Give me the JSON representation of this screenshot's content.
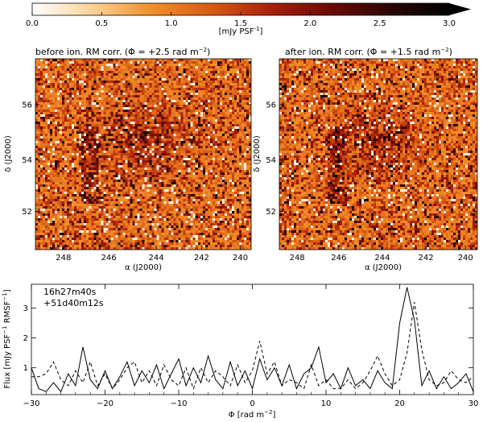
{
  "colorbar": {
    "ticks": [
      "0.0",
      "0.5",
      "1.0",
      "1.5",
      "2.0",
      "2.5",
      "3.0"
    ],
    "min": 0,
    "max": 3,
    "unit_label": "[mJy PSF",
    "unit_sup": "-1",
    "unit_close": "]",
    "colors": [
      "#ffffff",
      "#f9d49a",
      "#f28f2a",
      "#d95b14",
      "#a8200b",
      "#6b0a06",
      "#2c0603",
      "#000000"
    ]
  },
  "panels": [
    {
      "title": "before ion. RM corr. (Φ = +2.5 rad m",
      "title_sup": "−2",
      "title_close": ")"
    },
    {
      "title": "after ion. RM corr. (Φ = +1.5 rad m",
      "title_sup": "−2",
      "title_close": ")"
    }
  ],
  "maps": {
    "x_ticks": [
      "248",
      "246",
      "244",
      "242",
      "240"
    ],
    "y_ticks": [
      "52",
      "54",
      "56"
    ],
    "xlabel": "α (J2000)",
    "ylabel": "δ (J2000)"
  },
  "chart_data": {
    "type": "line",
    "annotation_line1": "16h27m40s",
    "annotation_line2": "+51d40m12s",
    "xlabel": "Φ [rad m",
    "xlabel_sup": "−2",
    "xlabel_close": "]",
    "ylabel": "Flux [mJy PSF",
    "ylabel_sup": "−1",
    "ylabel_mid": " RMSF",
    "ylabel_sup2": "−1",
    "ylabel_close": "]",
    "xlim": [
      -30,
      30
    ],
    "ylim": [
      0.1,
      3.8
    ],
    "x_ticks": [
      -30,
      -20,
      -10,
      0,
      10,
      20,
      30
    ],
    "x_tick_labels": [
      "−30",
      "−20",
      "−10",
      "0",
      "10",
      "20",
      "30"
    ],
    "y_ticks": [
      1,
      2,
      3
    ],
    "y_tick_labels": [
      "1",
      "2",
      "3"
    ],
    "series": [
      {
        "name": "before ion. RM corr.",
        "style": "solid",
        "x": [
          -30,
          -29,
          -28,
          -27,
          -26,
          -25,
          -24,
          -23,
          -22,
          -21,
          -20,
          -19,
          -18,
          -17,
          -16,
          -15,
          -14,
          -13,
          -12,
          -11,
          -10,
          -9,
          -8,
          -7,
          -6,
          -5,
          -4,
          -3,
          -2,
          -1,
          0,
          1,
          2,
          3,
          4,
          5,
          6,
          7,
          8,
          9,
          10,
          11,
          12,
          13,
          14,
          15,
          16,
          17,
          18,
          19,
          20,
          21,
          22,
          23,
          24,
          25,
          26,
          27,
          28,
          29,
          30
        ],
        "values": [
          1.0,
          0.3,
          0.2,
          0.5,
          0.2,
          0.8,
          0.4,
          1.7,
          0.6,
          0.3,
          0.9,
          0.3,
          0.7,
          1.2,
          0.4,
          0.9,
          0.5,
          1.1,
          0.3,
          0.8,
          1.3,
          0.4,
          1.0,
          0.5,
          1.4,
          0.6,
          0.3,
          1.2,
          0.4,
          0.9,
          0.3,
          1.3,
          0.6,
          1.0,
          0.4,
          1.1,
          0.3,
          0.8,
          1.0,
          1.7,
          0.5,
          0.8,
          0.3,
          1.0,
          0.4,
          0.6,
          0.3,
          0.9,
          0.5,
          0.3,
          2.5,
          3.7,
          2.6,
          0.4,
          0.9,
          0.3,
          0.7,
          0.3,
          0.5,
          0.8,
          0.2
        ]
      },
      {
        "name": "after ion. RM corr.",
        "style": "dashed",
        "x": [
          -30,
          -29,
          -28,
          -27,
          -26,
          -25,
          -24,
          -23,
          -22,
          -21,
          -20,
          -19,
          -18,
          -17,
          -16,
          -15,
          -14,
          -13,
          -12,
          -11,
          -10,
          -9,
          -8,
          -7,
          -6,
          -5,
          -4,
          -3,
          -2,
          -1,
          0,
          1,
          2,
          3,
          4,
          5,
          6,
          7,
          8,
          9,
          10,
          11,
          12,
          13,
          14,
          15,
          16,
          17,
          18,
          19,
          20,
          21,
          22,
          23,
          24,
          25,
          26,
          27,
          28,
          29,
          30
        ],
        "values": [
          0.7,
          0.7,
          0.8,
          1.2,
          0.6,
          0.4,
          0.9,
          0.5,
          1.2,
          0.4,
          0.8,
          0.3,
          0.6,
          1.0,
          1.2,
          0.5,
          0.9,
          0.4,
          1.1,
          0.6,
          0.4,
          1.0,
          0.3,
          1.0,
          0.5,
          0.9,
          0.7,
          0.4,
          1.1,
          0.5,
          0.9,
          1.9,
          0.8,
          1.2,
          0.4,
          0.6,
          0.5,
          0.3,
          1.1,
          0.4,
          0.6,
          0.3,
          0.3,
          0.6,
          0.3,
          0.5,
          0.9,
          1.4,
          0.8,
          0.4,
          0.6,
          1.5,
          3.2,
          1.6,
          0.6,
          0.4,
          0.5,
          0.9,
          0.6,
          0.5,
          0.7
        ]
      }
    ]
  }
}
